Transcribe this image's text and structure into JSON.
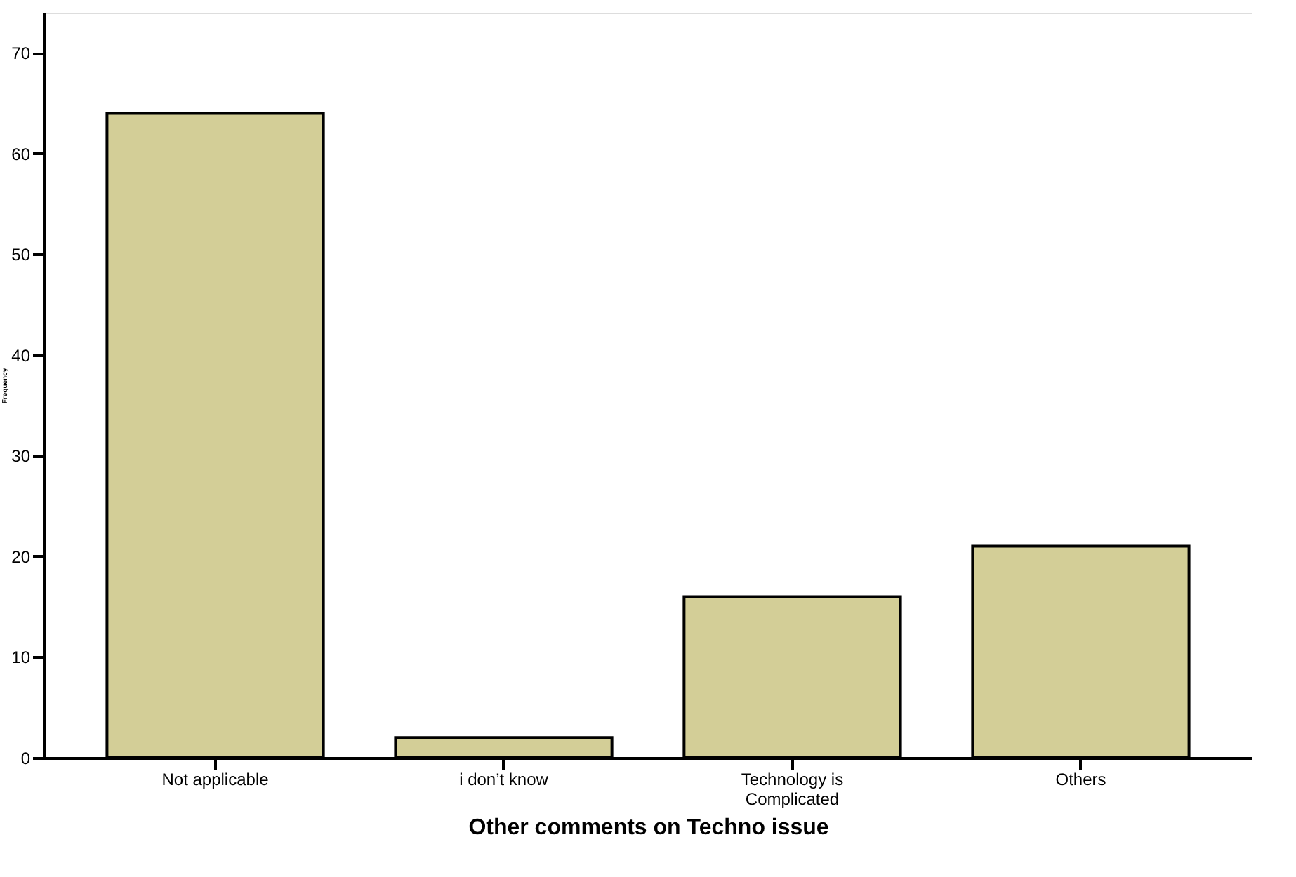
{
  "chart_data": {
    "type": "bar",
    "categories": [
      "Not applicable",
      "i don’t know",
      "Technology is\nComplicated",
      "Others"
    ],
    "values": [
      64,
      2,
      16,
      21
    ],
    "color": "#d3ce97",
    "xlabel": "Other comments on Techno issue",
    "ylabel": "Frequency",
    "ylim": [
      0,
      74
    ],
    "yticks": [
      0,
      10,
      20,
      30,
      40,
      50,
      60,
      70
    ],
    "grid": false
  }
}
